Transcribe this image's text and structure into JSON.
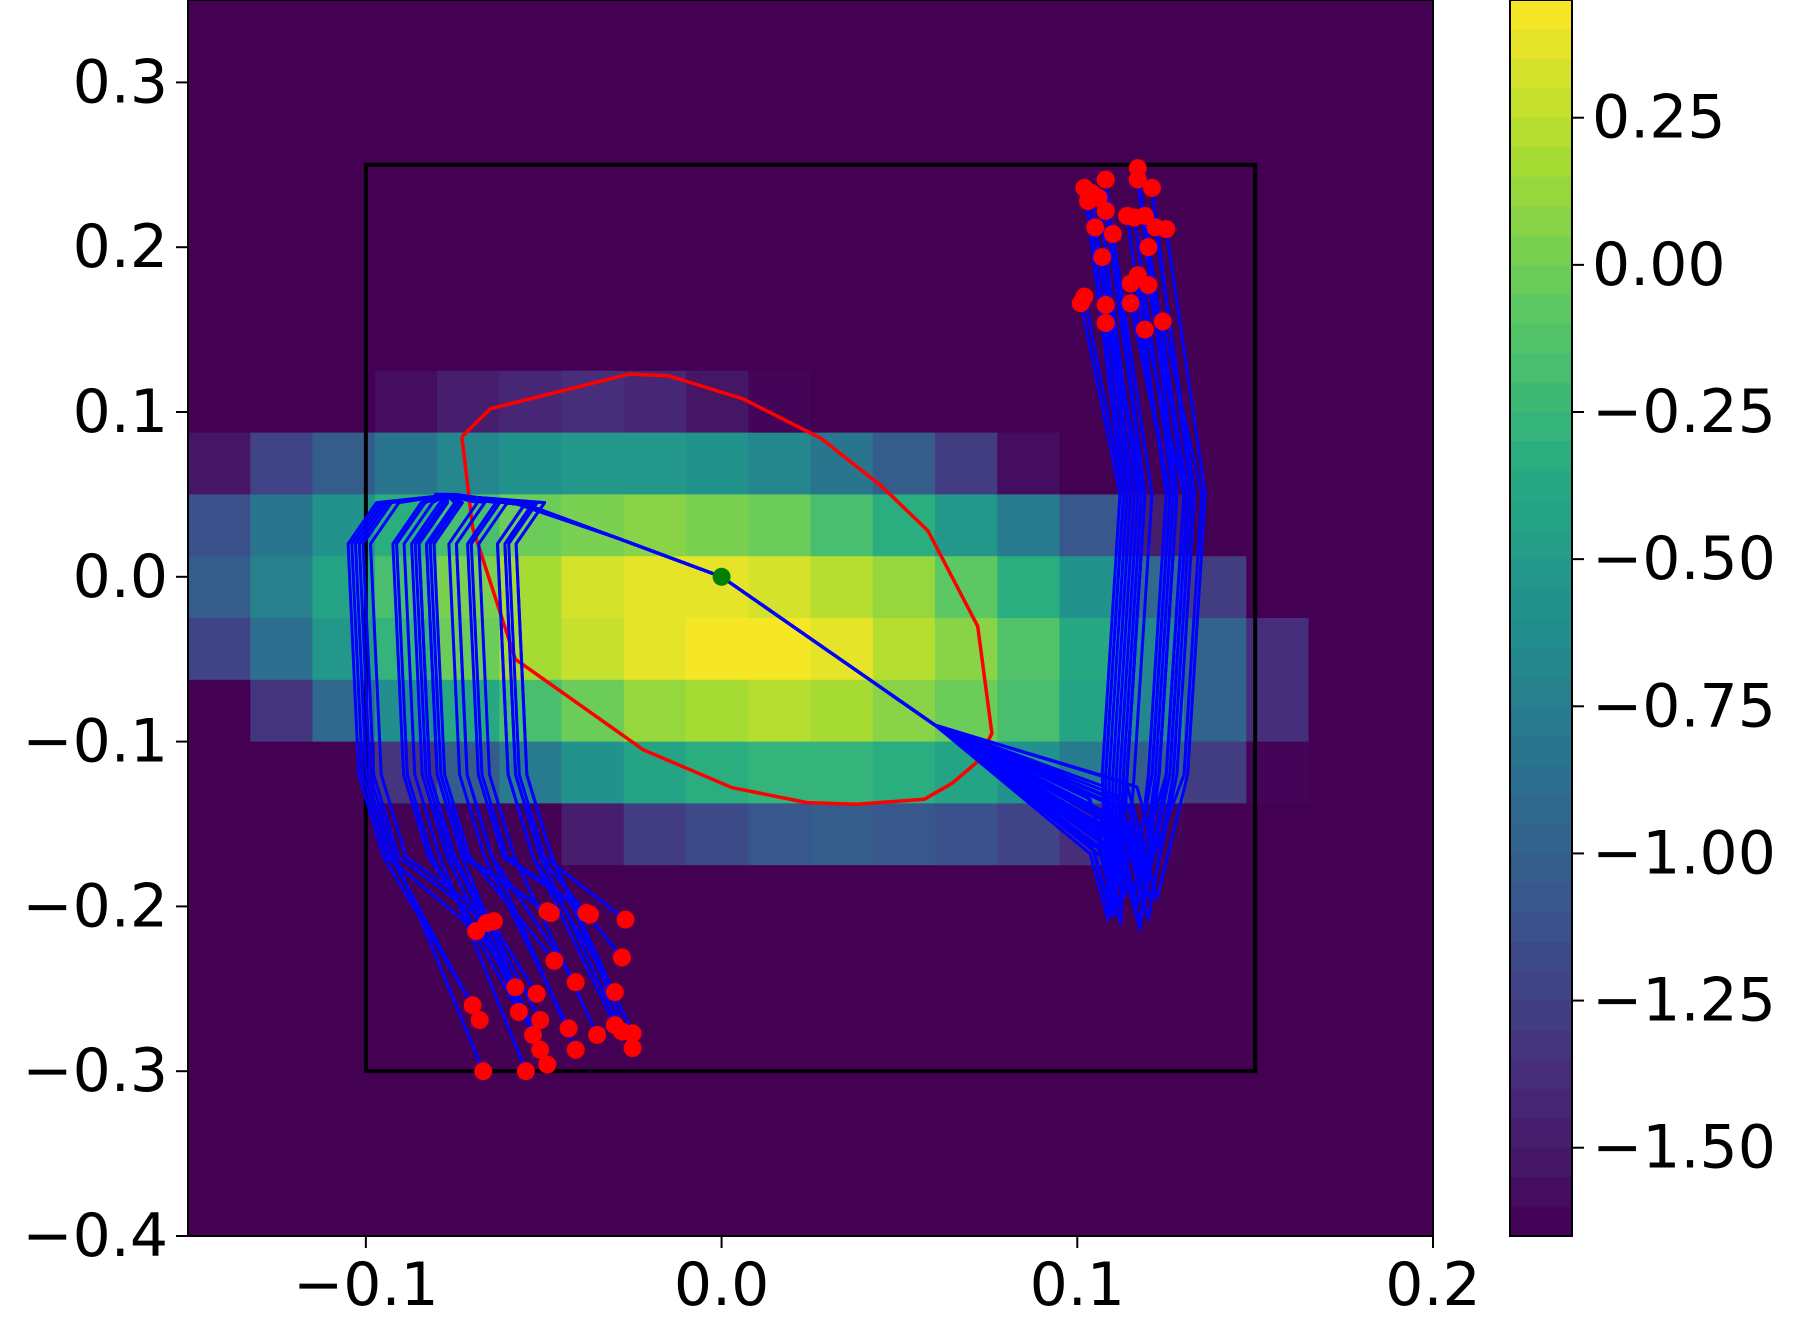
{
  "chart_data": {
    "type": "contour",
    "title": "",
    "xlabel": "",
    "ylabel": "",
    "xlim": [
      -0.15,
      0.2
    ],
    "ylim": [
      -0.4,
      0.35
    ],
    "x_ticks": [
      {
        "value": -0.1,
        "label": "−0.1"
      },
      {
        "value": 0.0,
        "label": "0.0"
      },
      {
        "value": 0.1,
        "label": "0.1"
      },
      {
        "value": 0.2,
        "label": "0.2"
      }
    ],
    "y_ticks": [
      {
        "value": 0.3,
        "label": "0.3"
      },
      {
        "value": 0.2,
        "label": "0.2"
      },
      {
        "value": 0.1,
        "label": "0.1"
      },
      {
        "value": 0.0,
        "label": "0.0"
      },
      {
        "value": -0.1,
        "label": "−0.1"
      },
      {
        "value": -0.2,
        "label": "−0.2"
      },
      {
        "value": -0.3,
        "label": "−0.3"
      },
      {
        "value": -0.4,
        "label": "−0.4"
      }
    ],
    "colormap": "viridis",
    "colorbar": {
      "range": [
        -1.65,
        0.45
      ],
      "ticks": [
        {
          "value": 0.25,
          "label": "0.25"
        },
        {
          "value": 0.0,
          "label": "0.00"
        },
        {
          "value": -0.25,
          "label": "−0.25"
        },
        {
          "value": -0.5,
          "label": "−0.50"
        },
        {
          "value": -0.75,
          "label": "−0.75"
        },
        {
          "value": -1.0,
          "label": "−1.00"
        },
        {
          "value": -1.25,
          "label": "−1.25"
        },
        {
          "value": -1.5,
          "label": "−1.50"
        }
      ]
    },
    "field": {
      "peak": [
        0.015,
        -0.035
      ],
      "peak_value": 0.42,
      "quad_a": 78.3,
      "quad_b": 102.1,
      "quad_c": 45.1,
      "linear_x": 2.1,
      "levels": 42
    },
    "box": {
      "x": [
        -0.1,
        0.15
      ],
      "y": [
        -0.3,
        0.25
      ],
      "color": "#000000"
    },
    "origin": {
      "x": 0.0,
      "y": 0.0,
      "color": "#007f00"
    },
    "red_boundary": {
      "color": "#ff0000",
      "points": [
        [
          -0.073,
          0.085
        ],
        [
          -0.065,
          0.102
        ],
        [
          -0.026,
          0.123
        ],
        [
          -0.015,
          0.122
        ],
        [
          0.006,
          0.108
        ],
        [
          0.028,
          0.084
        ],
        [
          0.045,
          0.055
        ],
        [
          0.058,
          0.028
        ],
        [
          0.072,
          -0.03
        ],
        [
          0.076,
          -0.095
        ],
        [
          0.072,
          -0.112
        ],
        [
          0.065,
          -0.125
        ],
        [
          0.057,
          -0.135
        ],
        [
          0.038,
          -0.138
        ],
        [
          0.024,
          -0.137
        ],
        [
          0.003,
          -0.128
        ],
        [
          -0.022,
          -0.105
        ],
        [
          -0.058,
          -0.05
        ],
        [
          -0.07,
          0.03
        ],
        [
          -0.073,
          0.085
        ]
      ]
    },
    "trajectories": {
      "color": "#0000ff",
      "left_ends": [
        [
          -0.069,
          -0.215
        ],
        [
          -0.066,
          -0.21
        ],
        [
          -0.064,
          -0.209
        ],
        [
          -0.049,
          -0.203
        ],
        [
          -0.048,
          -0.204
        ],
        [
          -0.038,
          -0.204
        ],
        [
          -0.037,
          -0.205
        ],
        [
          -0.027,
          -0.208
        ],
        [
          -0.047,
          -0.233
        ],
        [
          -0.041,
          -0.246
        ],
        [
          -0.028,
          -0.231
        ],
        [
          -0.058,
          -0.249
        ],
        [
          -0.052,
          -0.253
        ],
        [
          -0.03,
          -0.252
        ],
        [
          -0.07,
          -0.26
        ],
        [
          -0.057,
          -0.264
        ],
        [
          -0.068,
          -0.269
        ],
        [
          -0.051,
          -0.269
        ],
        [
          -0.043,
          -0.274
        ],
        [
          -0.03,
          -0.272
        ],
        [
          -0.053,
          -0.278
        ],
        [
          -0.035,
          -0.278
        ],
        [
          -0.028,
          -0.276
        ],
        [
          -0.025,
          -0.277
        ],
        [
          -0.051,
          -0.287
        ],
        [
          -0.041,
          -0.287
        ],
        [
          -0.025,
          -0.286
        ],
        [
          -0.067,
          -0.3
        ],
        [
          -0.055,
          -0.3
        ],
        [
          -0.049,
          -0.296
        ]
      ],
      "right_ends": [
        [
          0.117,
          0.248
        ],
        [
          0.117,
          0.241
        ],
        [
          0.102,
          0.236
        ],
        [
          0.104,
          0.233
        ],
        [
          0.108,
          0.241
        ],
        [
          0.121,
          0.236
        ],
        [
          0.103,
          0.228
        ],
        [
          0.106,
          0.23
        ],
        [
          0.108,
          0.222
        ],
        [
          0.119,
          0.219
        ],
        [
          0.114,
          0.219
        ],
        [
          0.116,
          0.218
        ],
        [
          0.122,
          0.212
        ],
        [
          0.105,
          0.212
        ],
        [
          0.11,
          0.208
        ],
        [
          0.125,
          0.211
        ],
        [
          0.12,
          0.2
        ],
        [
          0.107,
          0.194
        ],
        [
          0.115,
          0.178
        ],
        [
          0.117,
          0.183
        ],
        [
          0.12,
          0.177
        ],
        [
          0.101,
          0.166
        ],
        [
          0.102,
          0.17
        ],
        [
          0.108,
          0.165
        ],
        [
          0.115,
          0.166
        ],
        [
          0.108,
          0.154
        ],
        [
          0.119,
          0.15
        ],
        [
          0.124,
          0.155
        ]
      ],
      "end_color": "#ff0000"
    }
  }
}
